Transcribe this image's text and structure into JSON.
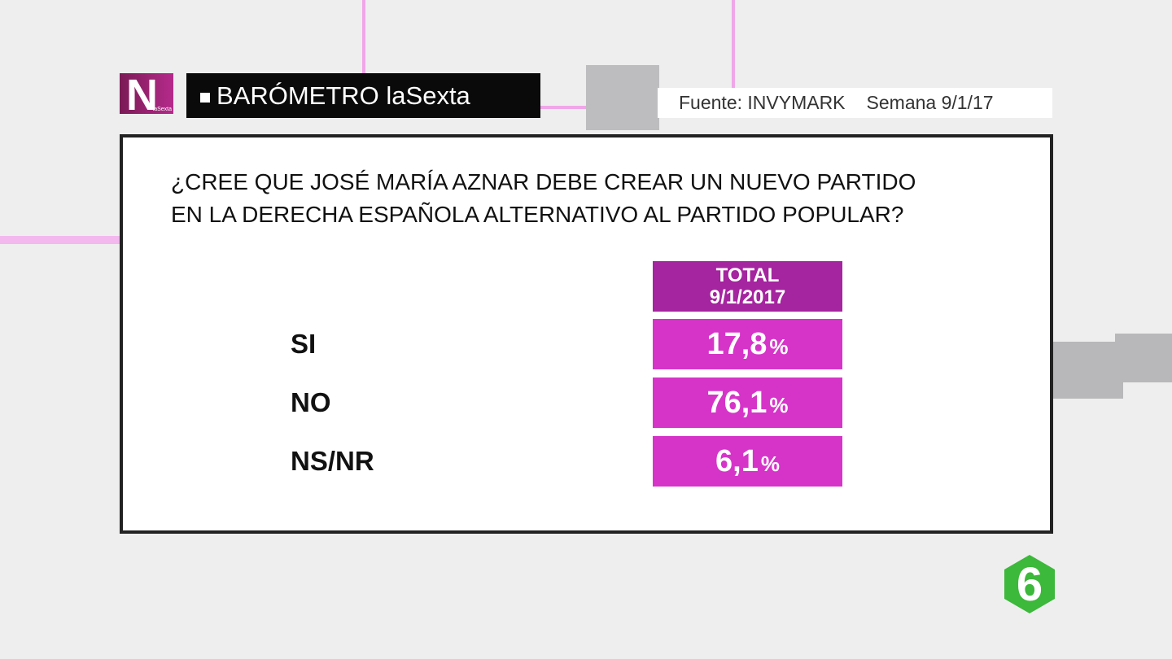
{
  "logo": {
    "letter": "N",
    "caption": "laSexta"
  },
  "header": {
    "title": "BARÓMETRO laSexta",
    "source": "Fuente: INVYMARK",
    "week": "Semana 9/1/17"
  },
  "question": {
    "lines": [
      "¿CREE QUE JOSÉ MARÍA AZNAR DEBE CREAR UN NUEVO PARTIDO",
      "EN LA DERECHA ESPAÑOLA ALTERNATIVO AL PARTIDO POPULAR?"
    ]
  },
  "table": {
    "column": {
      "title": "TOTAL",
      "date": "9/1/2017"
    },
    "rows": [
      {
        "label": "SI",
        "value": "17,8",
        "unit": "%"
      },
      {
        "label": "NO",
        "value": "76,1",
        "unit": "%"
      },
      {
        "label": "NS/NR",
        "value": "6,1",
        "unit": "%"
      }
    ]
  },
  "channel_logo": "6"
}
